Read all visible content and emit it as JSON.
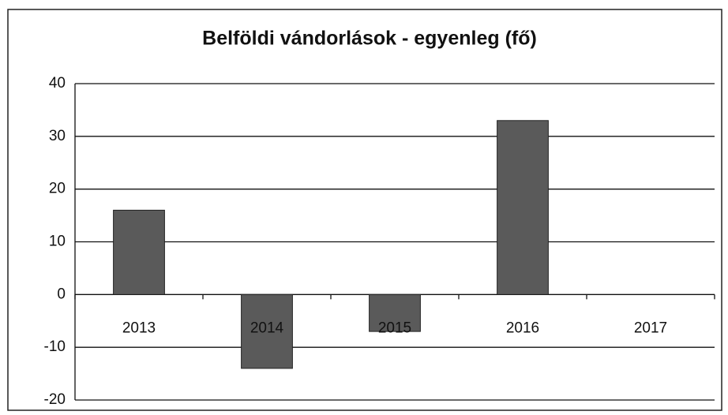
{
  "chart_data": {
    "type": "bar",
    "title": "Belföldi vándorlások - egyenleg (fő)",
    "categories": [
      "2013",
      "2014",
      "2015",
      "2016",
      "2017"
    ],
    "values": [
      16,
      -14,
      -7,
      33,
      0
    ],
    "color": "#5a5a5a",
    "ylim": [
      -20,
      40
    ],
    "yticks": [
      -20,
      -10,
      0,
      10,
      20,
      30,
      40
    ],
    "grid": true
  }
}
